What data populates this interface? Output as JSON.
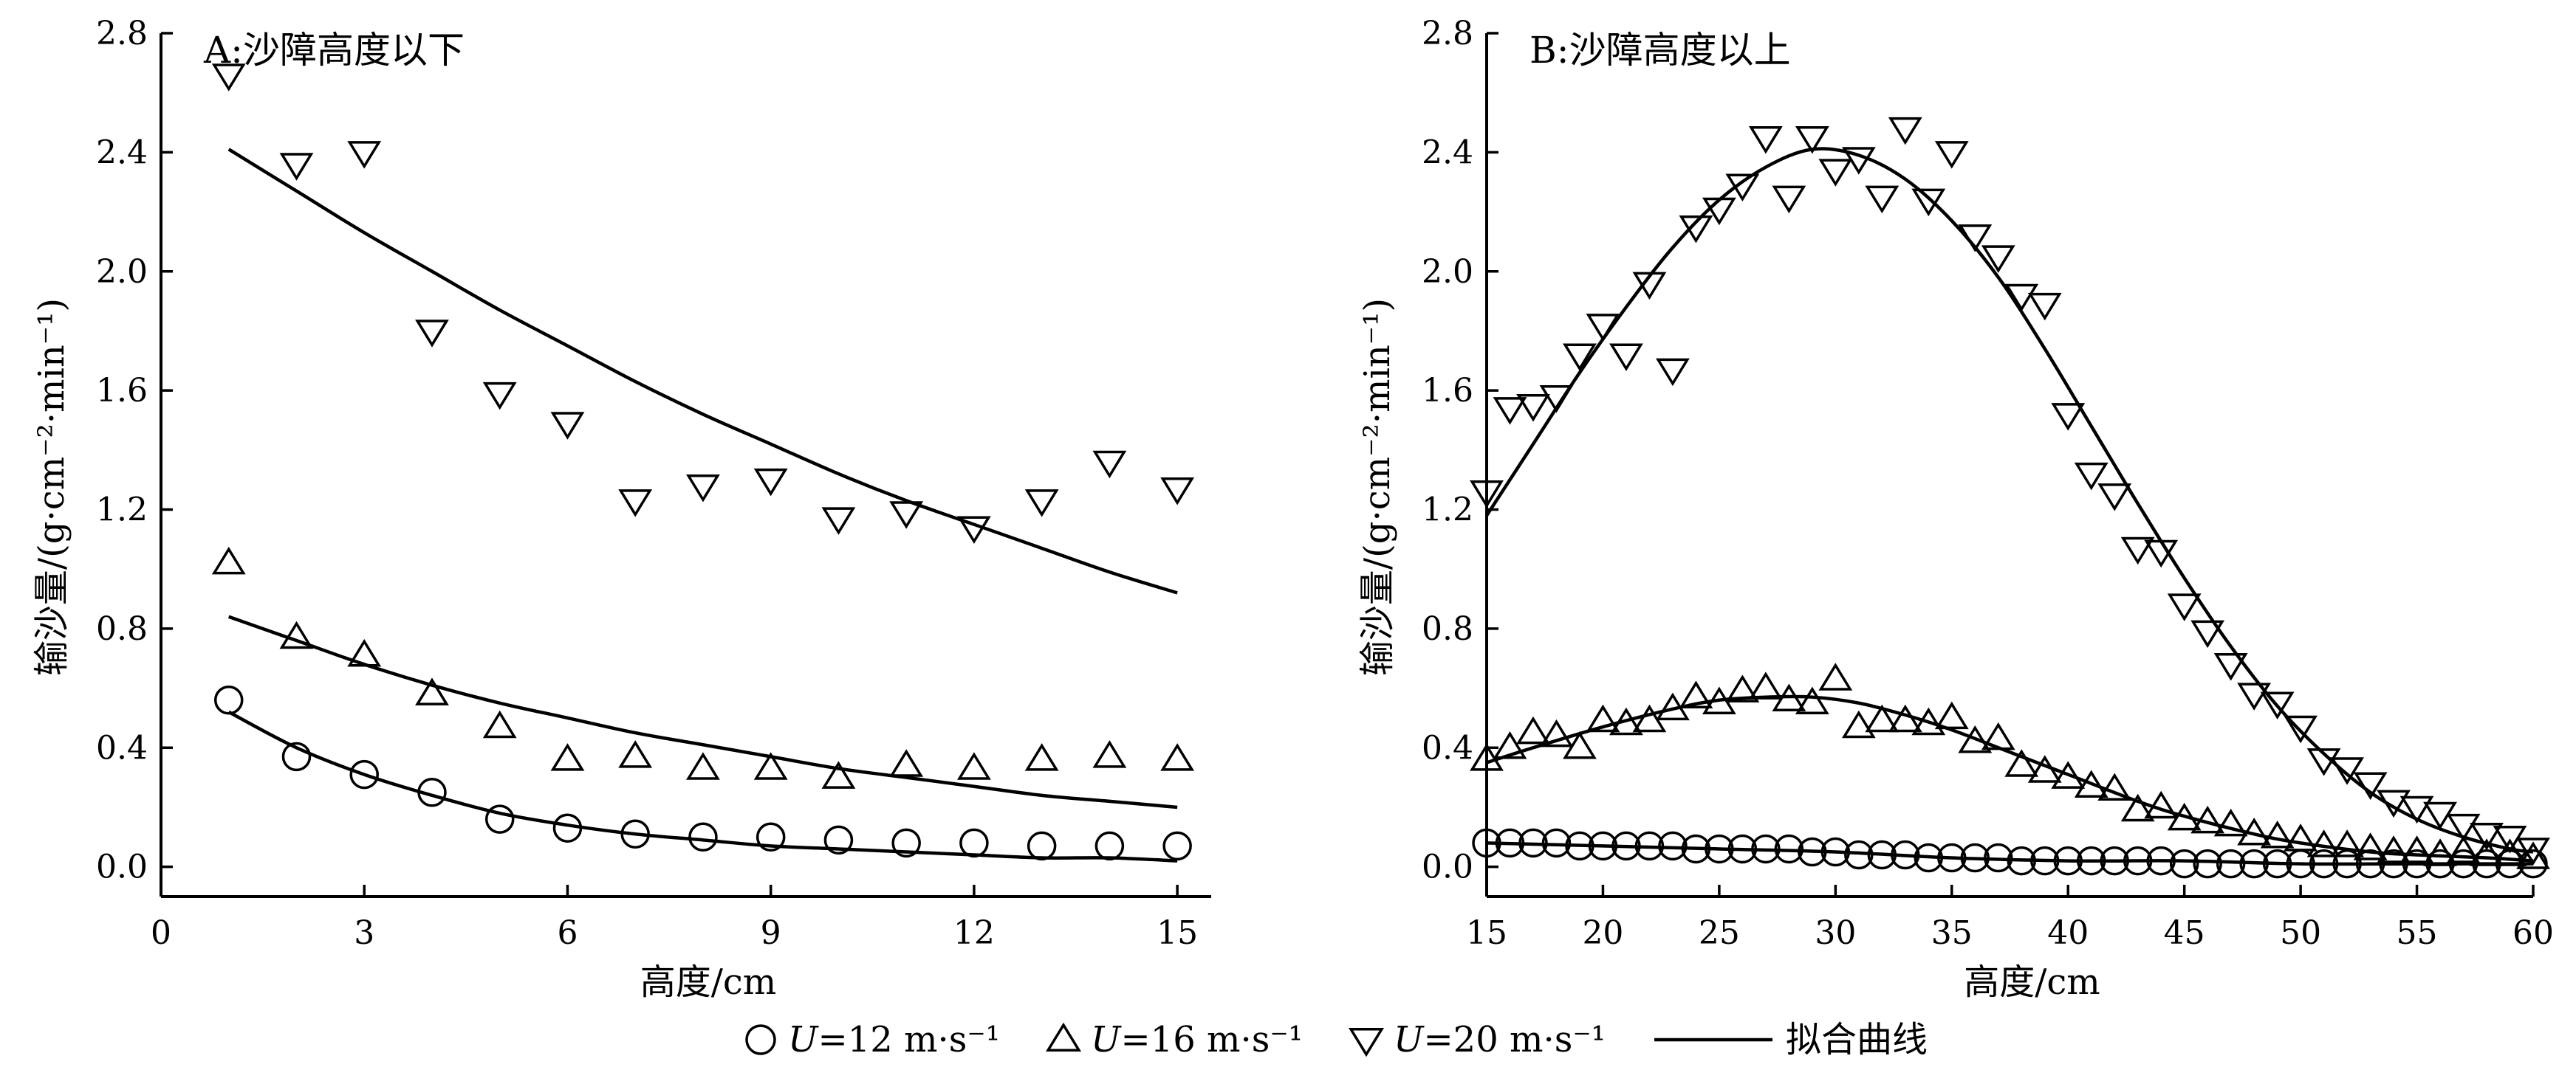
{
  "chart_data": [
    {
      "type": "scatter",
      "title": "A:沙障高度以下",
      "xlabel": "高度/cm",
      "ylabel": "输沙量/(g·cm⁻²·min⁻¹)",
      "xlim": [
        0,
        15.5
      ],
      "ylim": [
        -0.1,
        2.8
      ],
      "xticks": [
        0,
        3,
        6,
        9,
        12,
        15
      ],
      "yticks": [
        0.0,
        0.4,
        0.8,
        1.2,
        1.6,
        2.0,
        2.4,
        2.8
      ],
      "xtick_labels": [
        "0",
        "3",
        "6",
        "9",
        "12",
        "15"
      ],
      "ytick_labels": [
        "0.0",
        "0.4",
        "0.8",
        "1.2",
        "1.6",
        "2.0",
        "2.4",
        "2.8"
      ],
      "series": [
        {
          "marker": "circle",
          "x": [
            1,
            2,
            3,
            4,
            5,
            6,
            7,
            8,
            9,
            10,
            11,
            12,
            13,
            14,
            15
          ],
          "y": [
            0.56,
            0.37,
            0.31,
            0.25,
            0.16,
            0.13,
            0.11,
            0.1,
            0.1,
            0.09,
            0.08,
            0.08,
            0.07,
            0.07,
            0.07
          ]
        },
        {
          "marker": "triangle-up",
          "x": [
            1,
            2,
            3,
            4,
            5,
            6,
            7,
            8,
            9,
            10,
            11,
            12,
            13,
            14,
            15
          ],
          "y": [
            1.02,
            0.77,
            0.71,
            0.58,
            0.47,
            0.36,
            0.37,
            0.33,
            0.33,
            0.3,
            0.34,
            0.33,
            0.36,
            0.37,
            0.36
          ]
        },
        {
          "marker": "triangle-down",
          "x": [
            1,
            2,
            3,
            4,
            5,
            6,
            7,
            8,
            9,
            10,
            11,
            12,
            13,
            14,
            15
          ],
          "y": [
            2.66,
            2.36,
            2.4,
            1.8,
            1.59,
            1.49,
            1.23,
            1.28,
            1.3,
            1.17,
            1.19,
            1.14,
            1.23,
            1.36,
            1.27
          ]
        }
      ],
      "fit_lines": [
        {
          "x": [
            1,
            2,
            3,
            4,
            5,
            6,
            7,
            8,
            9,
            10,
            11,
            12,
            13,
            14,
            15
          ],
          "y": [
            0.52,
            0.4,
            0.31,
            0.24,
            0.18,
            0.14,
            0.11,
            0.09,
            0.07,
            0.06,
            0.05,
            0.04,
            0.03,
            0.03,
            0.02
          ]
        },
        {
          "x": [
            1,
            2,
            3,
            4,
            5,
            6,
            7,
            8,
            9,
            10,
            11,
            12,
            13,
            14,
            15
          ],
          "y": [
            0.84,
            0.76,
            0.68,
            0.61,
            0.55,
            0.5,
            0.45,
            0.41,
            0.37,
            0.33,
            0.3,
            0.27,
            0.24,
            0.22,
            0.2
          ]
        },
        {
          "x": [
            1,
            2,
            3,
            4,
            5,
            6,
            7,
            8,
            9,
            10,
            11,
            12,
            13,
            14,
            15
          ],
          "y": [
            2.41,
            2.27,
            2.13,
            2.0,
            1.87,
            1.75,
            1.63,
            1.52,
            1.42,
            1.32,
            1.23,
            1.15,
            1.07,
            0.99,
            0.92
          ]
        }
      ]
    },
    {
      "type": "scatter",
      "title": "B:沙障高度以上",
      "xlabel": "高度/cm",
      "ylabel": "输沙量/(g·cm⁻²·min⁻¹)",
      "xlim": [
        15,
        60
      ],
      "ylim": [
        -0.1,
        2.8
      ],
      "xticks": [
        15,
        20,
        25,
        30,
        35,
        40,
        45,
        50,
        55,
        60
      ],
      "yticks": [
        0.0,
        0.4,
        0.8,
        1.2,
        1.6,
        2.0,
        2.4,
        2.8
      ],
      "xtick_labels": [
        "15",
        "20",
        "25",
        "30",
        "35",
        "40",
        "45",
        "50",
        "55",
        "60"
      ],
      "ytick_labels": [
        "0.0",
        "0.4",
        "0.8",
        "1.2",
        "1.6",
        "2.0",
        "2.4",
        "2.8"
      ],
      "series": [
        {
          "marker": "circle",
          "x": [
            15,
            16,
            17,
            18,
            19,
            20,
            21,
            22,
            23,
            24,
            25,
            26,
            27,
            28,
            29,
            30,
            31,
            32,
            33,
            34,
            35,
            36,
            37,
            38,
            39,
            40,
            41,
            42,
            43,
            44,
            45,
            46,
            47,
            48,
            49,
            50,
            51,
            52,
            53,
            54,
            55,
            56,
            57,
            58,
            59,
            60
          ],
          "y": [
            0.08,
            0.08,
            0.08,
            0.08,
            0.07,
            0.07,
            0.07,
            0.07,
            0.07,
            0.06,
            0.06,
            0.06,
            0.06,
            0.06,
            0.05,
            0.05,
            0.04,
            0.04,
            0.04,
            0.03,
            0.03,
            0.03,
            0.03,
            0.02,
            0.02,
            0.02,
            0.02,
            0.02,
            0.02,
            0.02,
            0.01,
            0.01,
            0.01,
            0.01,
            0.01,
            0.01,
            0.01,
            0.01,
            0.01,
            0.01,
            0.01,
            0.01,
            0.01,
            0.01,
            0.01,
            0.01
          ]
        },
        {
          "marker": "triangle-up",
          "x": [
            15,
            16,
            17,
            18,
            19,
            20,
            21,
            22,
            23,
            24,
            25,
            26,
            27,
            28,
            29,
            30,
            31,
            32,
            33,
            34,
            35,
            36,
            37,
            38,
            39,
            40,
            41,
            42,
            43,
            44,
            45,
            46,
            47,
            48,
            49,
            50,
            51,
            52,
            53,
            54,
            55,
            56,
            57,
            58,
            59,
            60
          ],
          "y": [
            0.36,
            0.4,
            0.45,
            0.44,
            0.4,
            0.49,
            0.48,
            0.49,
            0.53,
            0.57,
            0.55,
            0.59,
            0.6,
            0.56,
            0.55,
            0.63,
            0.47,
            0.49,
            0.49,
            0.48,
            0.5,
            0.42,
            0.43,
            0.34,
            0.32,
            0.3,
            0.27,
            0.26,
            0.19,
            0.2,
            0.16,
            0.15,
            0.14,
            0.11,
            0.1,
            0.09,
            0.07,
            0.07,
            0.06,
            0.05,
            0.05,
            0.04,
            0.05,
            0.04,
            0.04,
            0.03
          ]
        },
        {
          "marker": "triangle-down",
          "x": [
            15,
            16,
            17,
            18,
            19,
            20,
            21,
            22,
            23,
            24,
            25,
            26,
            27,
            28,
            29,
            30,
            31,
            32,
            33,
            34,
            35,
            36,
            37,
            38,
            39,
            40,
            41,
            42,
            43,
            44,
            45,
            46,
            47,
            48,
            49,
            50,
            51,
            52,
            53,
            54,
            55,
            56,
            57,
            58,
            59,
            60
          ],
          "y": [
            1.26,
            1.54,
            1.55,
            1.58,
            1.72,
            1.82,
            1.72,
            1.96,
            1.67,
            2.15,
            2.21,
            2.29,
            2.45,
            2.25,
            2.45,
            2.34,
            2.38,
            2.25,
            2.48,
            2.24,
            2.4,
            2.12,
            2.05,
            1.92,
            1.89,
            1.52,
            1.32,
            1.25,
            1.07,
            1.06,
            0.88,
            0.79,
            0.68,
            0.58,
            0.55,
            0.47,
            0.36,
            0.33,
            0.28,
            0.22,
            0.2,
            0.18,
            0.14,
            0.11,
            0.1,
            0.06
          ]
        }
      ],
      "fit_lines": [
        {
          "x": [
            15,
            20,
            25,
            30,
            35,
            40,
            45,
            50,
            55,
            60
          ],
          "y": [
            0.08,
            0.07,
            0.06,
            0.05,
            0.03,
            0.02,
            0.02,
            0.01,
            0.01,
            0.01
          ]
        },
        {
          "x": [
            15,
            17,
            20,
            23,
            25,
            27,
            29,
            31,
            33,
            35,
            37,
            40,
            43,
            45,
            48,
            50,
            53,
            55,
            58,
            60
          ],
          "y": [
            0.35,
            0.4,
            0.47,
            0.53,
            0.56,
            0.57,
            0.57,
            0.55,
            0.51,
            0.46,
            0.4,
            0.31,
            0.22,
            0.17,
            0.11,
            0.08,
            0.05,
            0.04,
            0.03,
            0.02
          ]
        },
        {
          "x": [
            15,
            17,
            19,
            21,
            23,
            25,
            27,
            29,
            31,
            33,
            35,
            37,
            39,
            41,
            43,
            45,
            47,
            49,
            51,
            53,
            55,
            57,
            59,
            60
          ],
          "y": [
            1.18,
            1.42,
            1.66,
            1.88,
            2.08,
            2.24,
            2.35,
            2.41,
            2.39,
            2.31,
            2.17,
            1.98,
            1.74,
            1.48,
            1.22,
            0.97,
            0.74,
            0.54,
            0.38,
            0.25,
            0.16,
            0.1,
            0.06,
            0.05
          ]
        }
      ]
    }
  ],
  "legend": {
    "items": [
      {
        "marker": "circle",
        "label_var": "U",
        "label_rest": "=12 m·s⁻¹"
      },
      {
        "marker": "triangle-up",
        "label_var": "U",
        "label_rest": "=16 m·s⁻¹"
      },
      {
        "marker": "triangle-down",
        "label_var": "U",
        "label_rest": "=20 m·s⁻¹"
      },
      {
        "marker": "line",
        "label_var": "",
        "label_rest": "拟合曲线"
      }
    ]
  },
  "colors": {
    "ink": "#000000",
    "background": "#ffffff"
  }
}
